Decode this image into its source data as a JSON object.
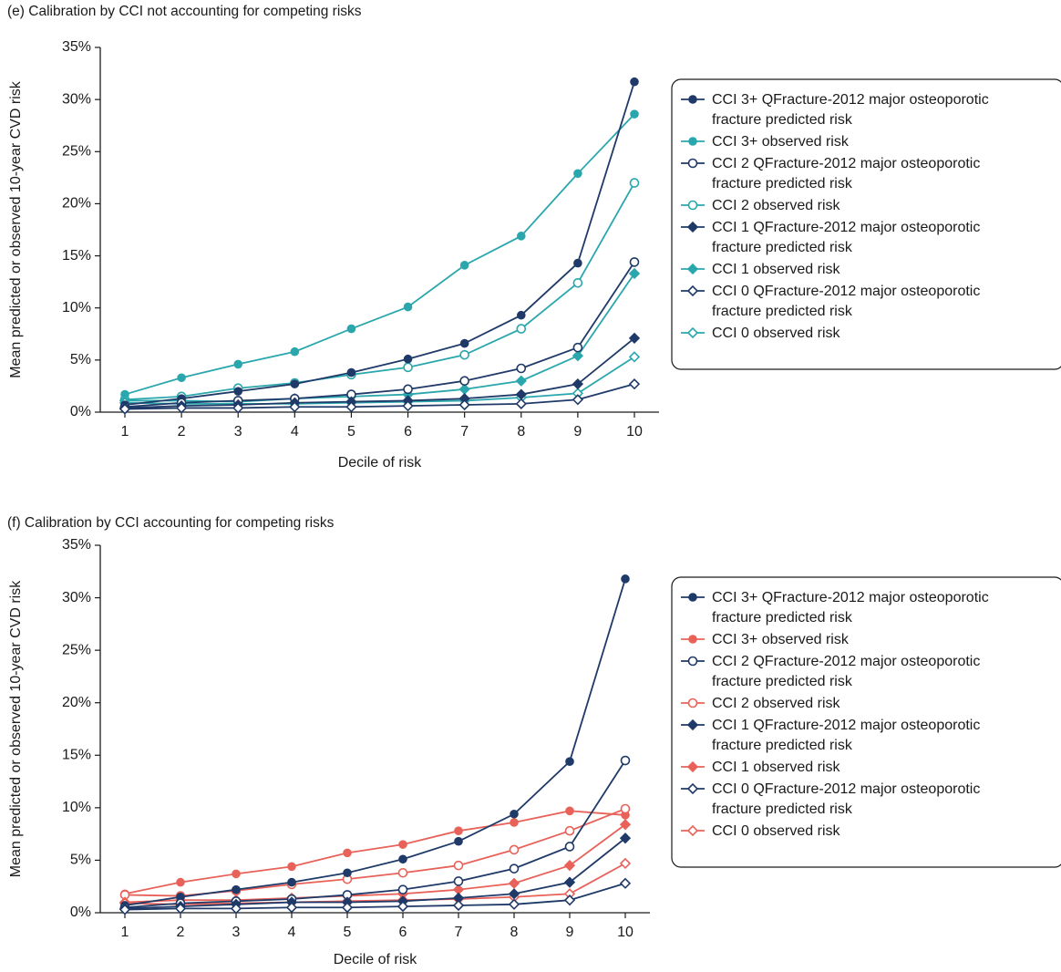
{
  "chart_data": [
    {
      "type": "line",
      "title": "(e) Calibration by CCI not accounting for competing risks",
      "xlabel": "Decile of risk",
      "ylabel": "Mean predicted or observed 10-year CVD risk",
      "x": [
        1,
        2,
        3,
        4,
        5,
        6,
        7,
        8,
        9,
        10
      ],
      "ylim": [
        0,
        35
      ],
      "yticks": [
        "0%",
        "5%",
        "10%",
        "15%",
        "20%",
        "25%",
        "30%",
        "35%"
      ],
      "legend_position": "right",
      "series": [
        {
          "name": "CCI 3+ QFracture-2012 major osteoporotic fracture predicted risk",
          "color": "#1f3a68",
          "marker": "circle",
          "filled": true,
          "values": [
            0.7,
            1.3,
            2.0,
            2.7,
            3.8,
            5.1,
            6.6,
            9.3,
            14.3,
            31.7
          ]
        },
        {
          "name": "CCI 3+ observed risk",
          "color": "#2aa7ad",
          "marker": "circle",
          "filled": true,
          "values": [
            1.7,
            3.3,
            4.6,
            5.8,
            8.0,
            10.1,
            14.1,
            16.9,
            22.9,
            28.6
          ]
        },
        {
          "name": "CCI 2 QFracture-2012 major osteoporotic fracture predicted risk",
          "color": "#1f3a68",
          "marker": "circle",
          "filled": false,
          "values": [
            0.5,
            0.9,
            1.1,
            1.3,
            1.7,
            2.2,
            3.0,
            4.2,
            6.2,
            14.4
          ]
        },
        {
          "name": "CCI 2 observed risk",
          "color": "#2aa7ad",
          "marker": "circle",
          "filled": false,
          "values": [
            1.2,
            1.5,
            2.3,
            2.8,
            3.6,
            4.3,
            5.5,
            8.0,
            12.4,
            22.0
          ]
        },
        {
          "name": "CCI 1 QFracture-2012 major osteoporotic fracture predicted risk",
          "color": "#1f3a68",
          "marker": "diamond",
          "filled": true,
          "values": [
            0.4,
            0.6,
            0.7,
            0.9,
            1.0,
            1.1,
            1.3,
            1.7,
            2.7,
            7.1
          ]
        },
        {
          "name": "CCI 1 observed risk",
          "color": "#2aa7ad",
          "marker": "diamond",
          "filled": true,
          "values": [
            1.1,
            1.1,
            1.0,
            1.3,
            1.5,
            1.7,
            2.2,
            3.0,
            5.4,
            13.3
          ]
        },
        {
          "name": "CCI 0 QFracture-2012 major osteoporotic fracture predicted risk",
          "color": "#1f3a68",
          "marker": "diamond",
          "filled": false,
          "values": [
            0.3,
            0.4,
            0.4,
            0.5,
            0.5,
            0.6,
            0.7,
            0.8,
            1.2,
            2.7
          ]
        },
        {
          "name": "CCI 0 observed risk",
          "color": "#2aa7ad",
          "marker": "diamond",
          "filled": false,
          "values": [
            0.9,
            0.8,
            0.8,
            0.8,
            0.9,
            1.0,
            1.1,
            1.4,
            1.8,
            5.3
          ]
        }
      ]
    },
    {
      "type": "line",
      "title": "(f) Calibration by CCI accounting for competing risks",
      "xlabel": "Decile of risk",
      "ylabel": "Mean predicted or observed 10-year CVD risk",
      "x": [
        1,
        2,
        3,
        4,
        5,
        6,
        7,
        8,
        9,
        10
      ],
      "ylim": [
        0,
        35
      ],
      "yticks": [
        "0%",
        "5%",
        "10%",
        "15%",
        "20%",
        "25%",
        "30%",
        "35%"
      ],
      "legend_position": "right",
      "series": [
        {
          "name": "CCI 3+ QFracture-2012 major osteoporotic fracture predicted risk",
          "color": "#1f3a68",
          "marker": "circle",
          "filled": true,
          "values": [
            0.7,
            1.5,
            2.2,
            2.9,
            3.8,
            5.1,
            6.8,
            9.4,
            14.4,
            31.8
          ]
        },
        {
          "name": "CCI 3+ observed risk",
          "color": "#e8625a",
          "marker": "circle",
          "filled": true,
          "values": [
            1.8,
            2.9,
            3.7,
            4.4,
            5.7,
            6.5,
            7.8,
            8.6,
            9.7,
            9.3
          ]
        },
        {
          "name": "CCI 2 QFracture-2012 major osteoporotic fracture predicted risk",
          "color": "#1f3a68",
          "marker": "circle",
          "filled": false,
          "values": [
            0.5,
            0.9,
            1.1,
            1.3,
            1.7,
            2.2,
            3.0,
            4.2,
            6.3,
            14.5
          ]
        },
        {
          "name": "CCI 2 observed risk",
          "color": "#e8625a",
          "marker": "circle",
          "filled": false,
          "values": [
            1.7,
            1.6,
            2.1,
            2.7,
            3.2,
            3.8,
            4.5,
            6.0,
            7.8,
            9.9
          ]
        },
        {
          "name": "CCI 1 QFracture-2012 major osteoporotic fracture predicted risk",
          "color": "#1f3a68",
          "marker": "diamond",
          "filled": true,
          "values": [
            0.4,
            0.6,
            0.8,
            1.0,
            1.0,
            1.1,
            1.4,
            1.8,
            2.9,
            7.1
          ]
        },
        {
          "name": "CCI 1 observed risk",
          "color": "#e8625a",
          "marker": "diamond",
          "filled": true,
          "values": [
            1.0,
            1.2,
            1.2,
            1.4,
            1.6,
            1.8,
            2.2,
            2.8,
            4.5,
            8.4
          ]
        },
        {
          "name": "CCI 0 QFracture-2012 major osteoporotic fracture predicted risk",
          "color": "#1f3a68",
          "marker": "diamond",
          "filled": false,
          "values": [
            0.3,
            0.4,
            0.4,
            0.5,
            0.5,
            0.6,
            0.7,
            0.8,
            1.2,
            2.8
          ]
        },
        {
          "name": "CCI 0 observed risk",
          "color": "#e8625a",
          "marker": "diamond",
          "filled": false,
          "values": [
            0.9,
            0.8,
            0.9,
            1.0,
            1.1,
            1.2,
            1.3,
            1.5,
            1.8,
            4.7
          ]
        }
      ]
    }
  ]
}
